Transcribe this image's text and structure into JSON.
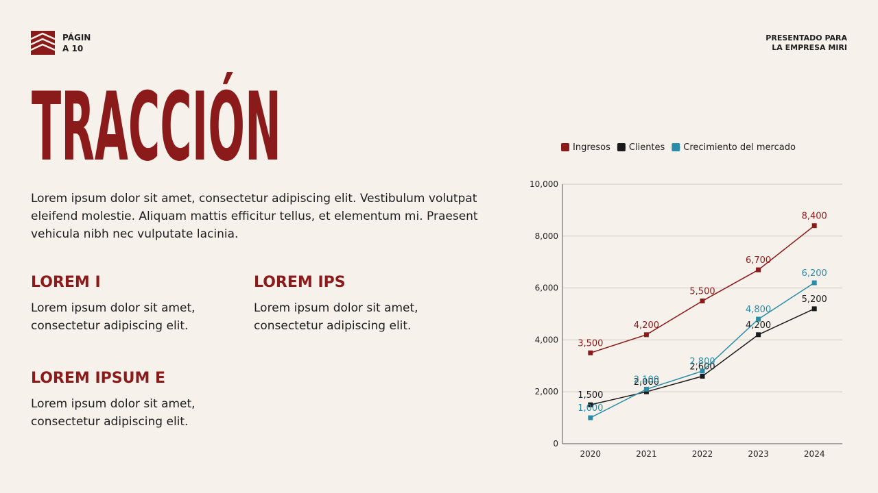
{
  "header": {
    "page_lines": [
      "PÁGIN",
      "A 10"
    ],
    "presented_lines": [
      "PRESENTADO PARA",
      "LA EMPRESA MIRI"
    ]
  },
  "title": "TRACCIÓN",
  "intro": "Lorem ipsum dolor sit amet, consectetur adipiscing elit. Vestibulum volutpat eleifend molestie. Aliquam mattis efficitur tellus, et elementum mi. Praesent vehicula nibh nec vulputate lacinia.",
  "sections": [
    {
      "heading": "LOREM I",
      "text": "Lorem ipsum dolor sit amet, consectetur adipiscing elit."
    },
    {
      "heading": "LOREM IPS",
      "text": "Lorem ipsum dolor sit amet, consectetur adipiscing elit."
    },
    {
      "heading": "LOREM IPSUM E",
      "text": "Lorem ipsum dolor sit amet, consectetur adipiscing elit."
    }
  ],
  "chart_data": {
    "type": "line",
    "categories": [
      "2020",
      "2021",
      "2022",
      "2023",
      "2024"
    ],
    "series": [
      {
        "name": "Ingresos",
        "color": "#8b1a1a",
        "values": [
          3500,
          4200,
          5500,
          6700,
          8400
        ],
        "value_labels": [
          "3,500",
          "4,200",
          "5,500",
          "6,700",
          "8,400"
        ]
      },
      {
        "name": "Clientes",
        "color": "#1a1a1a",
        "values": [
          1500,
          2000,
          2600,
          4200,
          5200
        ],
        "value_labels": [
          "1,500",
          "2,000",
          "2,600",
          "4,200",
          "5,200"
        ]
      },
      {
        "name": "Crecimiento del mercado",
        "color": "#2a8ca8",
        "values": [
          1000,
          2100,
          2800,
          4800,
          6200
        ],
        "value_labels": [
          "1,000",
          "2,100",
          "2,800",
          "4,800",
          "6,200"
        ]
      }
    ],
    "ylim": [
      0,
      10000
    ],
    "yticks": [
      0,
      {
        "value": 2000,
        "label": "2,000"
      },
      {
        "value": 4000,
        "label": "4,000"
      },
      {
        "value": 6000,
        "label": "6,000"
      },
      {
        "value": 8000,
        "label": "8,000"
      },
      {
        "value": 10000,
        "label": "10,000"
      }
    ],
    "grid": true,
    "legend": "top"
  }
}
